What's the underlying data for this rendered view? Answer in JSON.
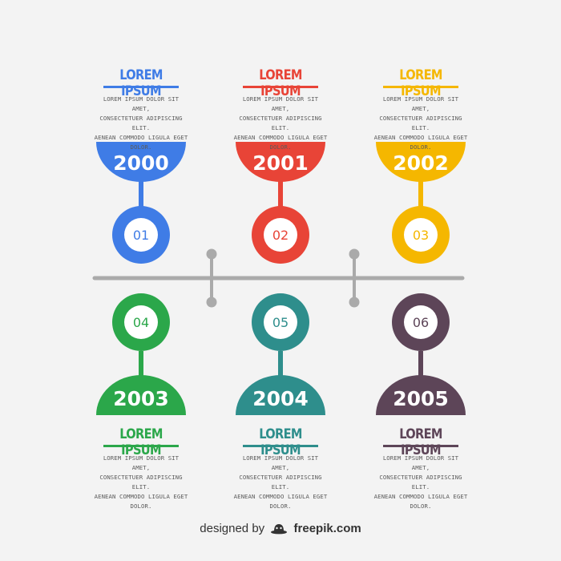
{
  "items": [
    {
      "year": "2000",
      "number": "01",
      "title": "LOREM IPSUM",
      "body": "LOREM IPSUM DOLOR SIT AMET,\nCONSECTETUER ADIPISCING ELIT.\nAENEAN COMMODO LIGULA EGET\nDOLOR.",
      "color": "#3f7ce6"
    },
    {
      "year": "2001",
      "number": "02",
      "title": "LOREM IPSUM",
      "body": "LOREM IPSUM DOLOR SIT AMET,\nCONSECTETUER ADIPISCING ELIT.\nAENEAN COMMODO LIGULA EGET\nDOLOR.",
      "color": "#e84437"
    },
    {
      "year": "2002",
      "number": "03",
      "title": "LOREM IPSUM",
      "body": "LOREM IPSUM DOLOR SIT AMET,\nCONSECTETUER ADIPISCING ELIT.\nAENEAN COMMODO LIGULA EGET\nDOLOR.",
      "color": "#f5b700"
    },
    {
      "year": "2003",
      "number": "04",
      "title": "LOREM IPSUM",
      "body": "LOREM IPSUM DOLOR SIT AMET,\nCONSECTETUER ADIPISCING ELIT.\nAENEAN COMMODO LIGULA EGET\nDOLOR.",
      "color": "#2ba74a"
    },
    {
      "year": "2004",
      "number": "05",
      "title": "LOREM IPSUM",
      "body": "LOREM IPSUM DOLOR SIT AMET,\nCONSECTETUER ADIPISCING ELIT.\nAENEAN COMMODO LIGULA EGET\nDOLOR.",
      "color": "#2e8e8c"
    },
    {
      "year": "2005",
      "number": "06",
      "title": "LOREM IPSUM",
      "body": "LOREM IPSUM DOLOR SIT AMET,\nCONSECTETUER ADIPISCING ELIT.\nAENEAN COMMODO LIGULA EGET\nDOLOR.",
      "color": "#5d4558"
    }
  ],
  "timeline_color": "#aaaaaa",
  "footer": {
    "designed_by": "designed by",
    "brand": "freepik.com",
    "logo_icon": "freepik-logo-icon"
  }
}
